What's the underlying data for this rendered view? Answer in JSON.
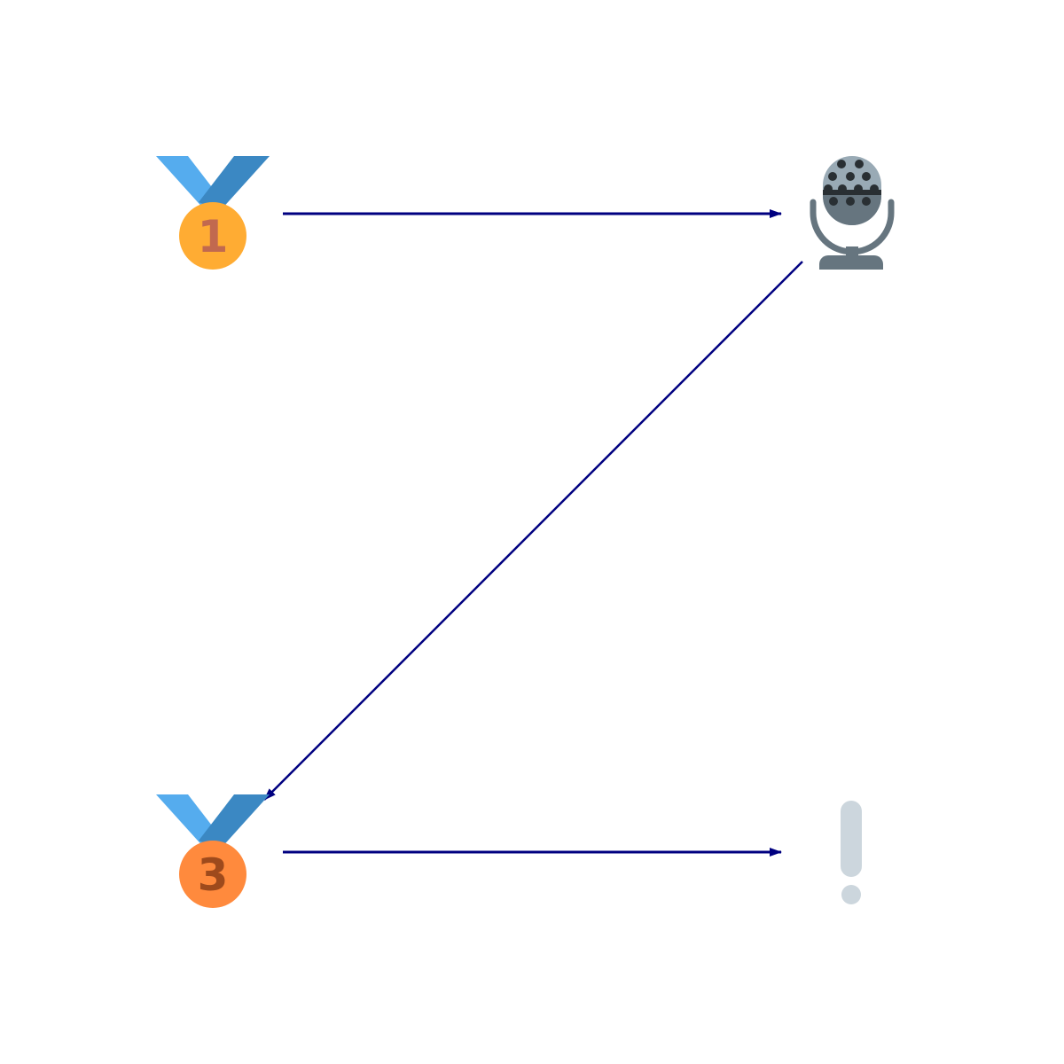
{
  "diagram": {
    "nodes": [
      {
        "id": "gold-medal",
        "icon": "first-place-medal-icon",
        "label": "1",
        "ribbon_left": "#55acee",
        "ribbon_right": "#3b88c3",
        "disc": "#ffac33",
        "digit": "#c1694f"
      },
      {
        "id": "microphone",
        "icon": "studio-microphone-icon",
        "head": "#99aab5",
        "body": "#66757f",
        "dots": "#292f33"
      },
      {
        "id": "bronze-medal",
        "icon": "third-place-medal-icon",
        "label": "3",
        "ribbon_left": "#55acee",
        "ribbon_right": "#3b88c3",
        "disc": "#ff8a3d",
        "digit": "#9e4a1c"
      },
      {
        "id": "exclamation",
        "icon": "white-exclamation-mark-icon",
        "color": "#ccd6dd"
      }
    ],
    "edges": [
      {
        "from": "gold-medal",
        "to": "microphone"
      },
      {
        "from": "microphone",
        "to": "bronze-medal"
      },
      {
        "from": "bronze-medal",
        "to": "exclamation"
      }
    ],
    "edge_color": "#000080"
  }
}
